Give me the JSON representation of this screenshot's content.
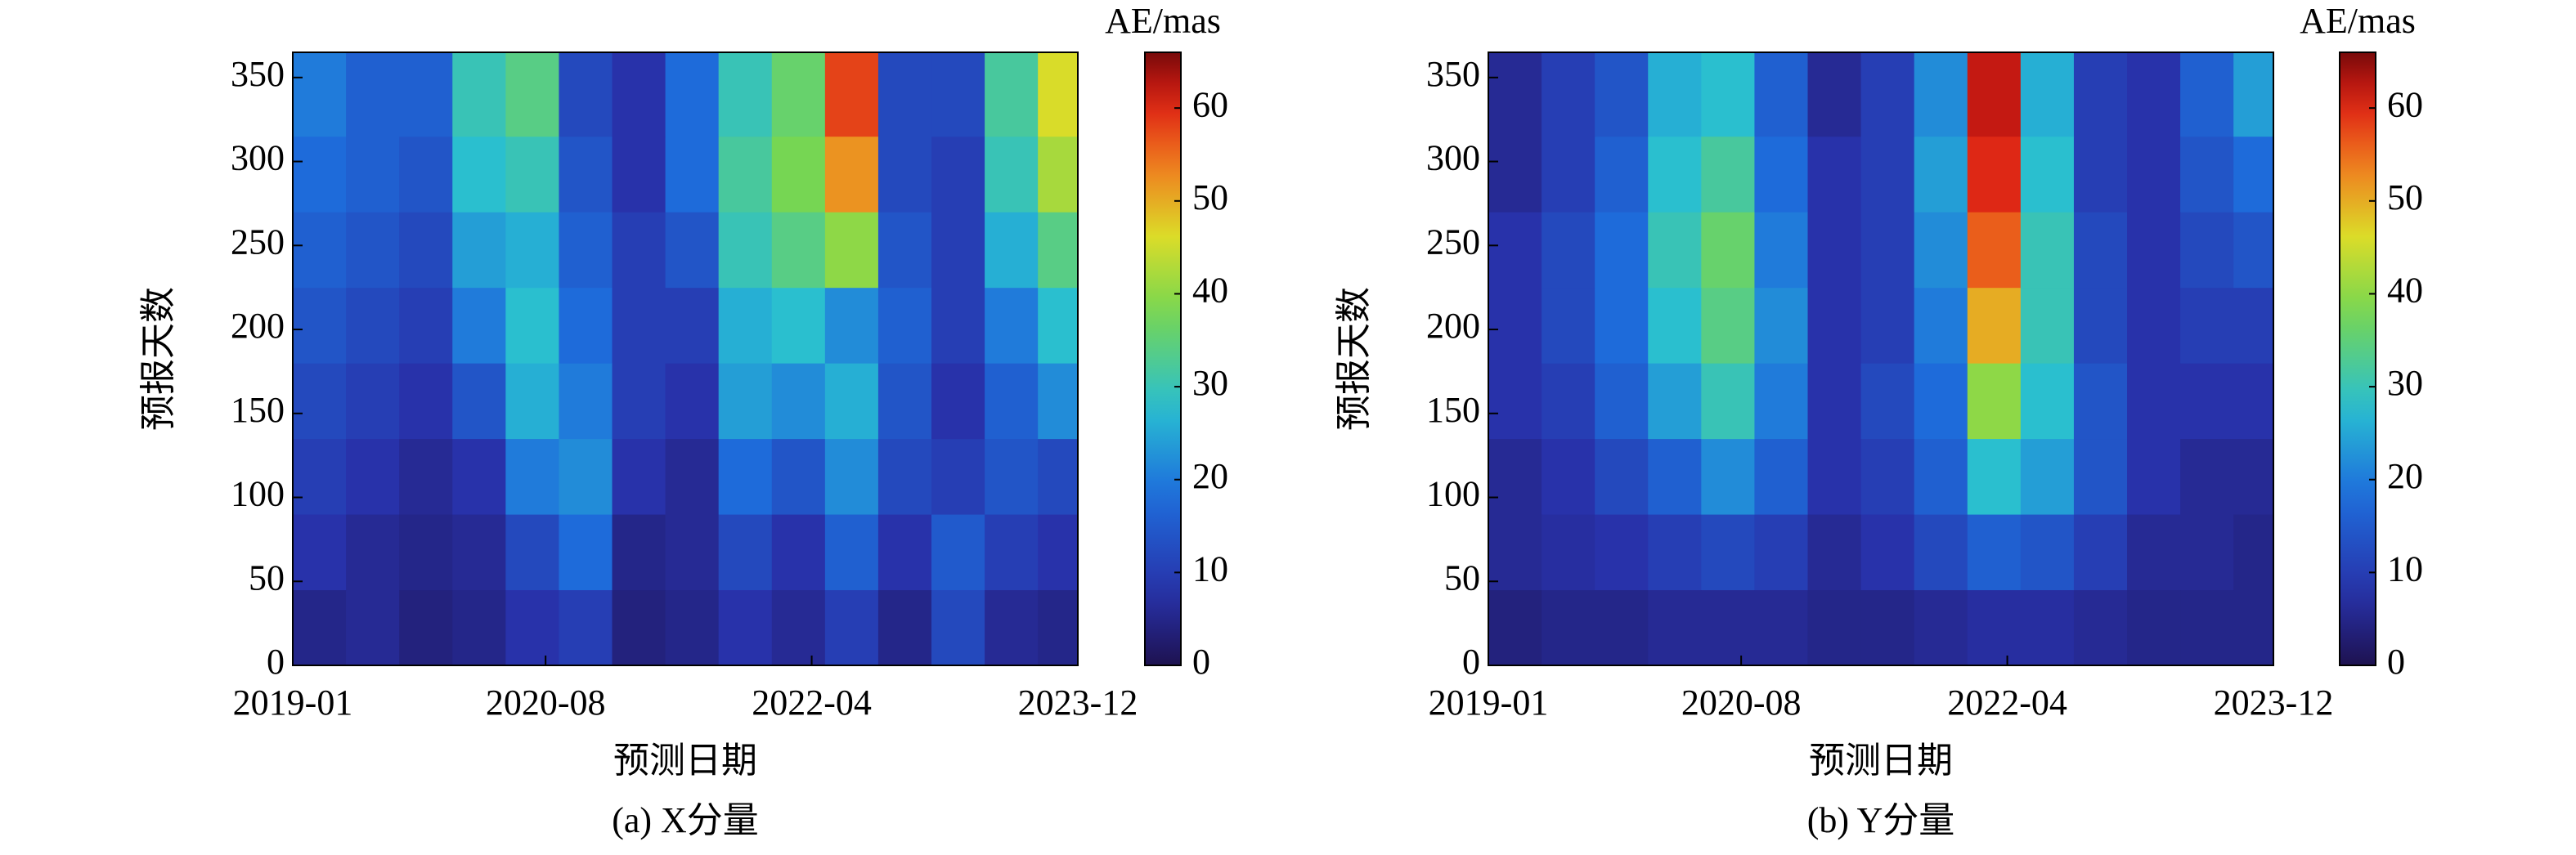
{
  "chart_data": [
    {
      "type": "heatmap",
      "caption": "(a) X分量",
      "xlabel": "预测日期",
      "ylabel": "预报天数",
      "colorbar_label": "AE/mas",
      "colormap": "jet",
      "x": [
        "2019-01",
        "2019-05",
        "2019-09",
        "2020-01",
        "2020-05",
        "2020-09",
        "2021-01",
        "2021-05",
        "2021-09",
        "2022-01",
        "2022-05",
        "2022-09",
        "2023-01",
        "2023-05",
        "2023-09"
      ],
      "y": [
        0,
        45,
        90,
        135,
        180,
        225,
        270,
        315
      ],
      "values": [
        [
          5,
          6,
          4,
          5,
          8,
          10,
          4,
          5,
          8,
          6,
          10,
          5,
          12,
          6,
          5
        ],
        [
          8,
          6,
          5,
          6,
          12,
          18,
          5,
          6,
          12,
          8,
          16,
          8,
          15,
          10,
          8
        ],
        [
          10,
          8,
          6,
          8,
          20,
          22,
          8,
          6,
          18,
          14,
          22,
          12,
          10,
          14,
          12
        ],
        [
          12,
          10,
          8,
          14,
          26,
          20,
          10,
          8,
          24,
          22,
          26,
          14,
          8,
          16,
          22
        ],
        [
          14,
          12,
          10,
          20,
          28,
          18,
          10,
          10,
          26,
          28,
          22,
          16,
          10,
          20,
          28
        ],
        [
          16,
          14,
          12,
          24,
          26,
          16,
          10,
          14,
          30,
          34,
          40,
          14,
          10,
          26,
          34
        ],
        [
          18,
          16,
          14,
          28,
          30,
          14,
          8,
          18,
          32,
          38,
          52,
          12,
          10,
          30,
          42
        ],
        [
          20,
          16,
          16,
          30,
          34,
          12,
          8,
          18,
          30,
          36,
          58,
          12,
          12,
          32,
          46
        ]
      ],
      "xlim": [
        "2019-01",
        "2023-12"
      ],
      "xticks": [
        "2019-01",
        "2020-08",
        "2022-04",
        "2023-12"
      ],
      "ylim": [
        0,
        365
      ],
      "yticks": [
        0,
        50,
        100,
        150,
        200,
        250,
        300,
        350
      ],
      "zlim": [
        0,
        66
      ],
      "zticks": [
        0,
        10,
        20,
        30,
        40,
        50,
        60
      ]
    },
    {
      "type": "heatmap",
      "caption": "(b) Y分量",
      "xlabel": "预测日期",
      "ylabel": "预报天数",
      "colorbar_label": "AE/mas",
      "colormap": "jet",
      "x": [
        "2019-01",
        "2019-05",
        "2019-09",
        "2020-01",
        "2020-05",
        "2020-09",
        "2021-01",
        "2021-05",
        "2021-09",
        "2022-01",
        "2022-05",
        "2022-09",
        "2023-01",
        "2023-05",
        "2023-09"
      ],
      "y": [
        0,
        45,
        90,
        135,
        180,
        225,
        270,
        315
      ],
      "values": [
        [
          4,
          5,
          5,
          6,
          6,
          6,
          5,
          5,
          6,
          7,
          7,
          6,
          5,
          5,
          5
        ],
        [
          6,
          7,
          8,
          10,
          12,
          10,
          6,
          8,
          12,
          16,
          14,
          10,
          6,
          6,
          5
        ],
        [
          6,
          8,
          12,
          16,
          22,
          16,
          8,
          10,
          16,
          28,
          24,
          14,
          8,
          6,
          6
        ],
        [
          8,
          10,
          16,
          24,
          30,
          20,
          8,
          12,
          18,
          40,
          28,
          14,
          8,
          8,
          8
        ],
        [
          8,
          12,
          18,
          28,
          34,
          22,
          8,
          10,
          20,
          50,
          30,
          12,
          8,
          10,
          10
        ],
        [
          8,
          12,
          18,
          30,
          36,
          20,
          8,
          10,
          22,
          56,
          30,
          12,
          8,
          12,
          14
        ],
        [
          6,
          10,
          16,
          28,
          32,
          18,
          8,
          10,
          24,
          60,
          28,
          10,
          8,
          14,
          18
        ],
        [
          6,
          10,
          14,
          26,
          28,
          16,
          6,
          10,
          22,
          62,
          26,
          10,
          8,
          16,
          24
        ]
      ],
      "xlim": [
        "2019-01",
        "2023-12"
      ],
      "xticks": [
        "2019-01",
        "2020-08",
        "2022-04",
        "2023-12"
      ],
      "ylim": [
        0,
        365
      ],
      "yticks": [
        0,
        50,
        100,
        150,
        200,
        250,
        300,
        350
      ],
      "zlim": [
        0,
        66
      ],
      "zticks": [
        0,
        10,
        20,
        30,
        40,
        50,
        60
      ]
    }
  ]
}
